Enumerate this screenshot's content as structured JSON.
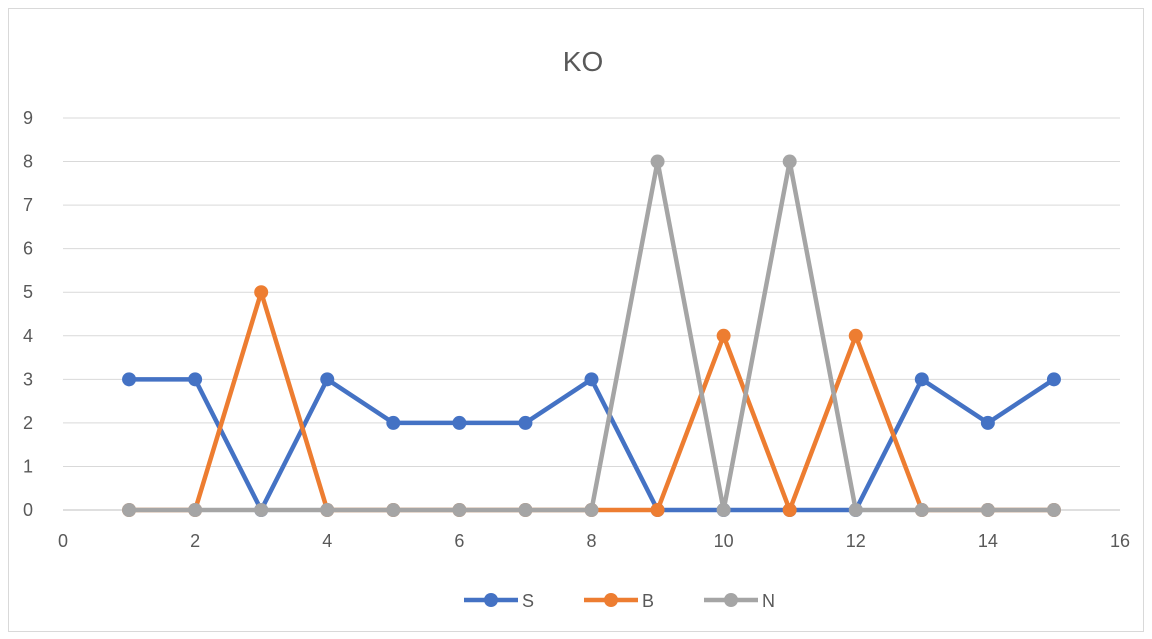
{
  "chart_data": {
    "type": "scatter",
    "title": "KO",
    "xlabel": "",
    "ylabel": "",
    "xlim": [
      0,
      16
    ],
    "ylim": [
      0,
      9
    ],
    "xticks": [
      0,
      2,
      4,
      6,
      8,
      10,
      12,
      14,
      16
    ],
    "yticks": [
      0,
      1,
      2,
      3,
      4,
      5,
      6,
      7,
      8,
      9
    ],
    "grid": true,
    "legend_position": "bottom",
    "x": [
      1,
      2,
      3,
      4,
      5,
      6,
      7,
      8,
      9,
      10,
      11,
      12,
      13,
      14,
      15
    ],
    "series": [
      {
        "name": "S",
        "color": "#4472c4",
        "values": [
          3,
          3,
          0,
          3,
          2,
          2,
          2,
          3,
          0,
          0,
          0,
          0,
          3,
          2,
          3
        ]
      },
      {
        "name": "B",
        "color": "#ed7d31",
        "values": [
          0,
          0,
          5,
          0,
          0,
          0,
          0,
          0,
          0,
          4,
          0,
          4,
          0,
          0,
          0
        ]
      },
      {
        "name": "N",
        "color": "#a5a5a5",
        "values": [
          0,
          0,
          0,
          0,
          0,
          0,
          0,
          0,
          8,
          0,
          8,
          0,
          0,
          0,
          0
        ]
      }
    ]
  }
}
